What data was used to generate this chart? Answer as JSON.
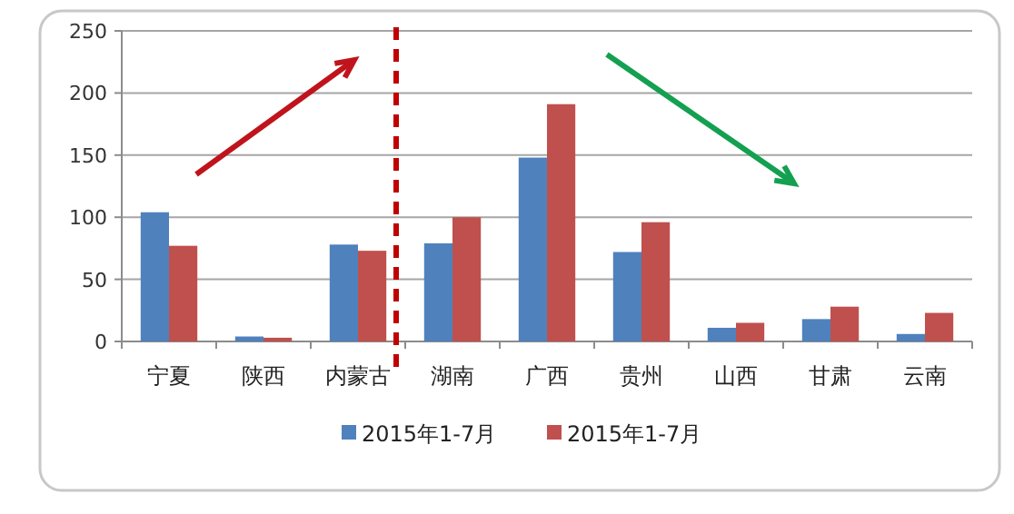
{
  "chart_data": {
    "type": "bar",
    "categories": [
      "宁夏",
      "陕西",
      "内蒙古",
      "湖南",
      "广西",
      "贵州",
      "山西",
      "甘肃",
      "云南"
    ],
    "series": [
      {
        "name": "2015年1-7月",
        "color": "#4f81bd",
        "values": [
          104,
          4,
          78,
          79,
          148,
          72,
          11,
          18,
          6
        ]
      },
      {
        "name": "2015年1-7月",
        "color": "#c0504d",
        "values": [
          77,
          3,
          73,
          100,
          191,
          96,
          15,
          28,
          23
        ]
      }
    ],
    "ylim": [
      0,
      250
    ],
    "yticks": [
      0,
      50,
      100,
      150,
      200,
      250
    ],
    "grid": "y",
    "legend": "bottom"
  }
}
